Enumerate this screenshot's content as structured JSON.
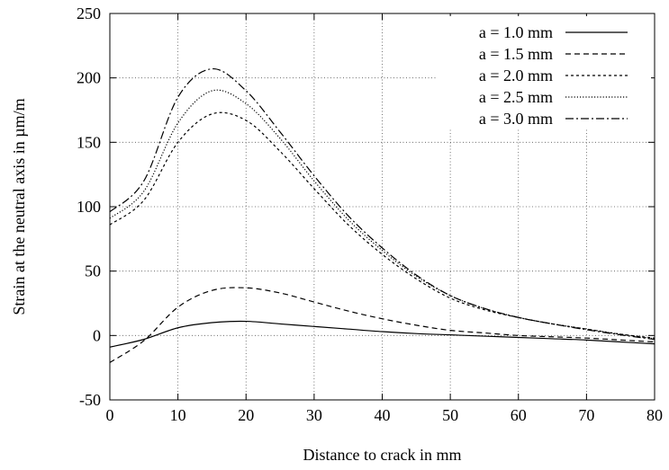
{
  "chart_data": {
    "type": "line",
    "title": "",
    "xlabel": "Distance to crack in mm",
    "ylabel": "Strain at the neutral axis in µm/m",
    "xlim": [
      0,
      80
    ],
    "ylim": [
      -50,
      250
    ],
    "xticks": [
      0,
      10,
      20,
      30,
      40,
      50,
      60,
      70,
      80
    ],
    "yticks": [
      -50,
      0,
      50,
      100,
      150,
      200,
      250
    ],
    "x_tick_labels": [
      "0",
      "10",
      "20",
      "30",
      "40",
      "50",
      "60",
      "70",
      "80"
    ],
    "y_tick_labels": [
      "-50",
      "0",
      "50",
      "100",
      "150",
      "200",
      "250"
    ],
    "grid": true,
    "grid_style": "dotted",
    "legend_position": "top-right",
    "x": [
      0,
      5,
      10,
      15,
      20,
      25,
      30,
      35,
      40,
      45,
      50,
      55,
      60,
      65,
      70,
      75,
      80
    ],
    "series": [
      {
        "name": "a = 1.0 mm",
        "dash": "solid",
        "color": "#000000",
        "values": [
          -9,
          -3,
          6,
          10,
          11,
          9,
          7,
          5,
          3,
          1.5,
          0.5,
          -0.5,
          -1.5,
          -2.5,
          -3.5,
          -5,
          -6.5
        ]
      },
      {
        "name": "a = 1.5 mm",
        "dash": "dashed",
        "color": "#000000",
        "values": [
          -21,
          -4,
          22,
          35,
          37,
          33,
          26,
          19,
          13,
          8,
          4,
          2,
          0,
          -1,
          -2,
          -3.5,
          -5
        ]
      },
      {
        "name": "a = 2.0 mm",
        "dash": "dotted",
        "color": "#000000",
        "values": [
          86,
          105,
          150,
          172,
          167,
          143,
          114,
          86,
          63,
          44,
          29,
          20,
          14,
          9,
          5,
          1,
          -2
        ]
      },
      {
        "name": "a = 2.5 mm",
        "dash": "fine-dotted",
        "color": "#000000",
        "values": [
          91,
          112,
          165,
          190,
          180,
          153,
          120,
          90,
          66,
          46,
          31,
          21,
          14,
          9,
          5,
          1,
          -2.5
        ]
      },
      {
        "name": "a = 3.0 mm",
        "dash": "dash-dot",
        "color": "#000000",
        "values": [
          96,
          120,
          185,
          207,
          190,
          158,
          124,
          93,
          68,
          47,
          31,
          21,
          14,
          9,
          4.5,
          0.5,
          -3
        ]
      }
    ]
  }
}
